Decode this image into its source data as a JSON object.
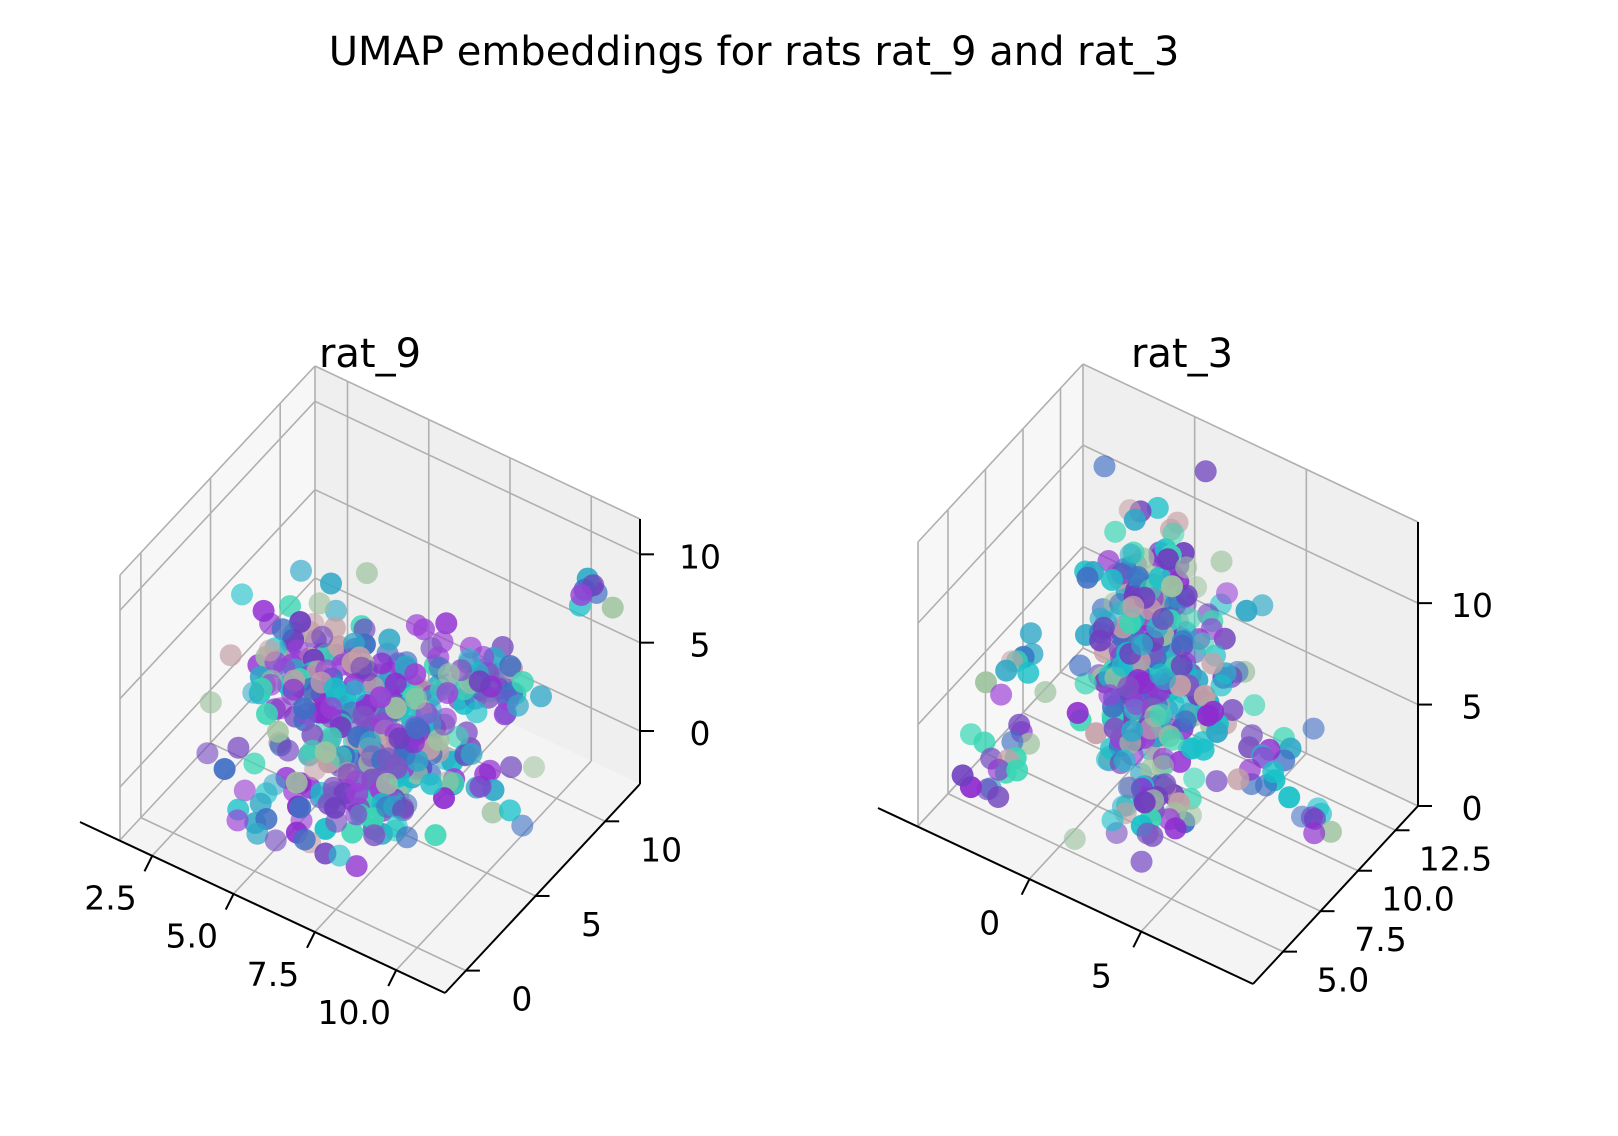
{
  "suptitle": "UMAP embeddings for rats rat_9 and rat_3",
  "chart_data": [
    {
      "type": "scatter",
      "projection": "3d",
      "title": "rat_9",
      "xlabel": "",
      "ylabel": "",
      "zlabel": "",
      "grid": true,
      "legend": "none",
      "xlim": [
        1.5,
        11.5
      ],
      "ylim": [
        -1.5,
        12.5
      ],
      "zlim": [
        -3,
        12
      ],
      "xticks": [
        "2.5",
        "5.0",
        "7.5",
        "10.0"
      ],
      "yticks": [
        "0",
        "5",
        "10"
      ],
      "zticks": [
        "0",
        "5",
        "10"
      ],
      "colors": [
        "#8e2ccf",
        "#9b40d6",
        "#6f3fbf",
        "#7e57c2",
        "#3f6fc4",
        "#2fa8c7",
        "#18c1c9",
        "#3ad6b4",
        "#9ec39f",
        "#c4a0a6"
      ],
      "points_estimated": 430,
      "clusters": [
        {
          "center": [
            6.5,
            6.0,
            1.5
          ],
          "spread": [
            1.6,
            1.7,
            1.6
          ],
          "count": 260
        },
        {
          "center": [
            3.5,
            6.0,
            2.5
          ],
          "spread": [
            0.5,
            1.6,
            0.6
          ],
          "count": 35
        },
        {
          "center": [
            7.5,
            2.0,
            1.5
          ],
          "spread": [
            0.7,
            0.7,
            0.8
          ],
          "count": 45
        },
        {
          "center": [
            8.5,
            8.5,
            3.5
          ],
          "spread": [
            0.8,
            1.0,
            1.0
          ],
          "count": 40
        },
        {
          "center": [
            10.5,
            11.0,
            8.5
          ],
          "spread": [
            0.3,
            0.3,
            0.5
          ],
          "count": 8
        },
        {
          "center": [
            5.8,
            5.5,
            5.0
          ],
          "spread": [
            0.3,
            0.3,
            0.6
          ],
          "count": 12
        },
        {
          "center": [
            5.0,
            2.5,
            -1.5
          ],
          "spread": [
            1.2,
            1.2,
            0.6
          ],
          "count": 30
        }
      ]
    },
    {
      "type": "scatter",
      "projection": "3d",
      "title": "rat_3",
      "xlabel": "",
      "ylabel": "",
      "zlabel": "",
      "grid": true,
      "legend": "none",
      "xlim": [
        -5,
        10
      ],
      "ylim": [
        3.0,
        14.0
      ],
      "zlim": [
        0,
        14
      ],
      "xticks": [
        "0",
        "5"
      ],
      "yticks": [
        "5.0",
        "7.5",
        "10.0",
        "12.5"
      ],
      "zticks": [
        "0",
        "5",
        "10"
      ],
      "colors": [
        "#8e2ccf",
        "#9b40d6",
        "#6f3fbf",
        "#7e57c2",
        "#3f6fc4",
        "#2fa8c7",
        "#18c1c9",
        "#3ad6b4",
        "#9ec39f",
        "#c4a0a6"
      ],
      "points_estimated": 420,
      "clusters": [
        {
          "center": [
            1.5,
            9.0,
            6.5
          ],
          "spread": [
            1.3,
            1.3,
            2.8
          ],
          "count": 330
        },
        {
          "center": [
            -3.5,
            7.0,
            5.5
          ],
          "spread": [
            0.3,
            0.8,
            0.3
          ],
          "count": 10
        },
        {
          "center": [
            -2.5,
            5.0,
            3.0
          ],
          "spread": [
            0.8,
            1.2,
            0.8
          ],
          "count": 18
        },
        {
          "center": [
            6.0,
            10.0,
            3.0
          ],
          "spread": [
            0.6,
            1.0,
            0.6
          ],
          "count": 15
        },
        {
          "center": [
            8.0,
            9.5,
            2.0
          ],
          "spread": [
            0.5,
            0.3,
            0.3
          ],
          "count": 8
        },
        {
          "center": [
            2.5,
            7.5,
            1.0
          ],
          "spread": [
            0.6,
            0.6,
            0.5
          ],
          "count": 20
        }
      ]
    }
  ]
}
